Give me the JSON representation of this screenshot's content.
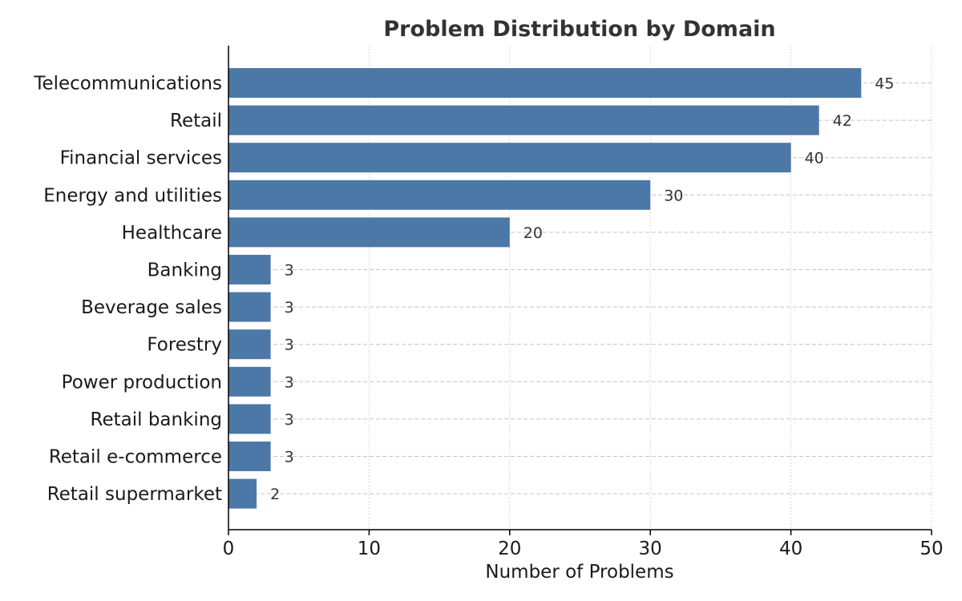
{
  "chart_data": {
    "type": "bar",
    "orientation": "horizontal",
    "title": "Problem Distribution by Domain",
    "xlabel": "Number of Problems",
    "ylabel": "",
    "xlim": [
      0,
      50
    ],
    "xticks": [
      0,
      10,
      20,
      30,
      40,
      50
    ],
    "categories": [
      "Telecommunications",
      "Retail",
      "Financial services",
      "Energy and utilities",
      "Healthcare",
      "Banking",
      "Beverage sales",
      "Forestry",
      "Power production",
      "Retail banking",
      "Retail e-commerce",
      "Retail supermarket"
    ],
    "values": [
      45,
      42,
      40,
      30,
      20,
      3,
      3,
      3,
      3,
      3,
      3,
      2
    ],
    "bar_color": "#4c78a8",
    "grid": "dashed",
    "legend": "none"
  }
}
